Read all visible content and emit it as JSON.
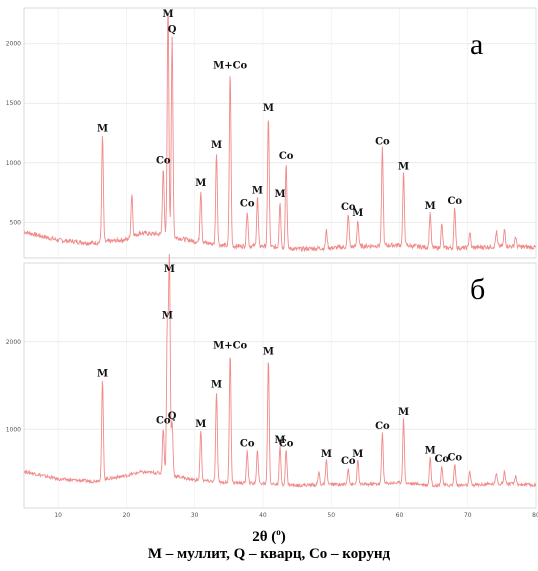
{
  "chart_data": [
    {
      "type": "line",
      "panel": "а",
      "series_color": "#f08a8a",
      "grid": true,
      "xlim": [
        5,
        80
      ],
      "ylim": [
        200,
        2300
      ],
      "x_ticks": [],
      "y_ticks": [
        "500",
        "1000",
        "1500",
        "2000"
      ],
      "baseline": [
        [
          5,
          420
        ],
        [
          10,
          350
        ],
        [
          15,
          325
        ],
        [
          20,
          355
        ],
        [
          22,
          410
        ],
        [
          25,
          400
        ],
        [
          30,
          340
        ],
        [
          35,
          300
        ],
        [
          40,
          300
        ],
        [
          45,
          275
        ],
        [
          50,
          285
        ],
        [
          55,
          300
        ],
        [
          60,
          310
        ],
        [
          65,
          285
        ],
        [
          70,
          285
        ],
        [
          75,
          300
        ],
        [
          80,
          290
        ]
      ],
      "peaks": [
        {
          "x": 16.5,
          "y": 1230,
          "label": "M"
        },
        {
          "x": 20.8,
          "y": 740,
          "label": ""
        },
        {
          "x": 25.4,
          "y": 960,
          "label": "Co"
        },
        {
          "x": 26.1,
          "y": 2330,
          "label": "M"
        },
        {
          "x": 26.7,
          "y": 2060,
          "label": "Q"
        },
        {
          "x": 30.9,
          "y": 770,
          "label": "M"
        },
        {
          "x": 33.2,
          "y": 1090,
          "label": "M"
        },
        {
          "x": 35.2,
          "y": 1760,
          "label": "M+Co"
        },
        {
          "x": 37.7,
          "y": 600,
          "label": "Co"
        },
        {
          "x": 39.2,
          "y": 710,
          "label": "M"
        },
        {
          "x": 40.8,
          "y": 1400,
          "label": "M"
        },
        {
          "x": 42.5,
          "y": 680,
          "label": "M"
        },
        {
          "x": 43.4,
          "y": 1000,
          "label": "Co"
        },
        {
          "x": 49.3,
          "y": 430,
          "label": ""
        },
        {
          "x": 52.5,
          "y": 570,
          "label": "Co"
        },
        {
          "x": 53.9,
          "y": 520,
          "label": "M"
        },
        {
          "x": 57.5,
          "y": 1120,
          "label": "Co"
        },
        {
          "x": 60.6,
          "y": 910,
          "label": "M"
        },
        {
          "x": 64.5,
          "y": 580,
          "label": "M"
        },
        {
          "x": 66.2,
          "y": 480,
          "label": ""
        },
        {
          "x": 68.1,
          "y": 620,
          "label": "Co"
        },
        {
          "x": 70.3,
          "y": 420,
          "label": ""
        },
        {
          "x": 74.2,
          "y": 420,
          "label": ""
        },
        {
          "x": 75.4,
          "y": 440,
          "label": ""
        },
        {
          "x": 77.0,
          "y": 380,
          "label": ""
        }
      ]
    },
    {
      "type": "line",
      "panel": "б",
      "series_color": "#f08a8a",
      "grid": true,
      "xlim": [
        5,
        80
      ],
      "ylim": [
        100,
        2900
      ],
      "x_ticks": [
        "10",
        "20",
        "30",
        "40",
        "50",
        "60",
        "70",
        "80"
      ],
      "y_ticks": [
        "1000",
        "2000"
      ],
      "baseline": [
        [
          5,
          520
        ],
        [
          10,
          430
        ],
        [
          15,
          405
        ],
        [
          20,
          470
        ],
        [
          22,
          510
        ],
        [
          25,
          500
        ],
        [
          30,
          420
        ],
        [
          35,
          390
        ],
        [
          40,
          380
        ],
        [
          45,
          360
        ],
        [
          50,
          370
        ],
        [
          55,
          370
        ],
        [
          60,
          390
        ],
        [
          65,
          360
        ],
        [
          70,
          360
        ],
        [
          75,
          380
        ],
        [
          80,
          360
        ]
      ],
      "peaks": [
        {
          "x": 16.5,
          "y": 1560,
          "label": "M"
        },
        {
          "x": 25.4,
          "y": 1020,
          "label": "Co"
        },
        {
          "x": 26.0,
          "y": 2220,
          "label": "M"
        },
        {
          "x": 26.3,
          "y": 2920,
          "label": "M"
        },
        {
          "x": 26.7,
          "y": 1070,
          "label": "Q"
        },
        {
          "x": 30.9,
          "y": 980,
          "label": "M"
        },
        {
          "x": 33.2,
          "y": 1430,
          "label": "M"
        },
        {
          "x": 35.2,
          "y": 1880,
          "label": "M+Co"
        },
        {
          "x": 37.7,
          "y": 760,
          "label": "Co"
        },
        {
          "x": 39.2,
          "y": 760,
          "label": ""
        },
        {
          "x": 40.8,
          "y": 1810,
          "label": "M"
        },
        {
          "x": 42.5,
          "y": 800,
          "label": "M"
        },
        {
          "x": 43.4,
          "y": 760,
          "label": "Co"
        },
        {
          "x": 48.2,
          "y": 510,
          "label": ""
        },
        {
          "x": 49.3,
          "y": 640,
          "label": "M"
        },
        {
          "x": 52.5,
          "y": 560,
          "label": "Co"
        },
        {
          "x": 53.9,
          "y": 640,
          "label": "M"
        },
        {
          "x": 57.5,
          "y": 960,
          "label": "Co"
        },
        {
          "x": 60.6,
          "y": 1120,
          "label": "M"
        },
        {
          "x": 64.5,
          "y": 680,
          "label": "M"
        },
        {
          "x": 66.2,
          "y": 580,
          "label": "Co"
        },
        {
          "x": 68.1,
          "y": 600,
          "label": "Co"
        },
        {
          "x": 70.3,
          "y": 510,
          "label": ""
        },
        {
          "x": 74.2,
          "y": 500,
          "label": ""
        },
        {
          "x": 75.4,
          "y": 520,
          "label": ""
        },
        {
          "x": 77.0,
          "y": 460,
          "label": ""
        }
      ]
    }
  ],
  "xlabel": "2θ (",
  "xlabel_sup": "o",
  "xlabel_end": ")",
  "legend": "М – муллит, Q – кварц, Co – корунд"
}
